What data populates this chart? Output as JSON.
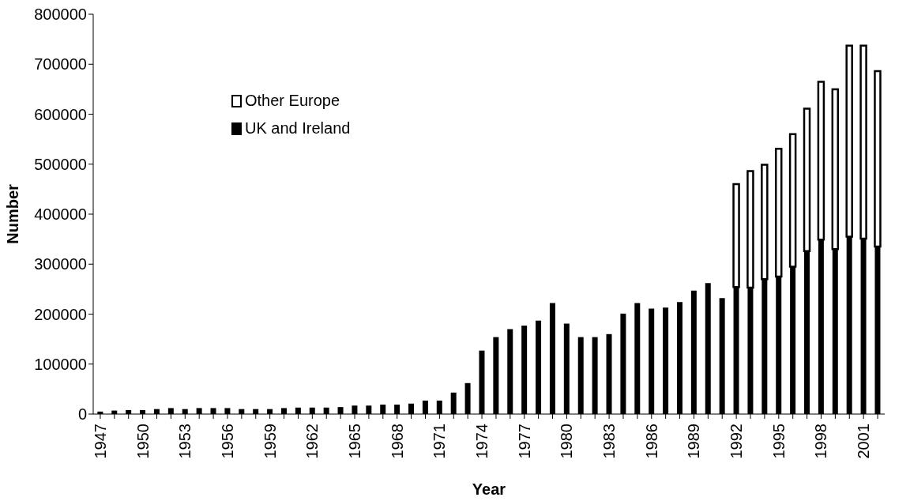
{
  "chart_data": {
    "type": "bar",
    "xlabel": "Year",
    "ylabel": "Number",
    "stacked": true,
    "legend": "top left",
    "grid": false,
    "categories": [
      "1947",
      null,
      null,
      "1950",
      null,
      null,
      "1953",
      null,
      null,
      "1956",
      null,
      null,
      "1959",
      null,
      null,
      "1962",
      null,
      null,
      "1965",
      null,
      null,
      "1968",
      null,
      null,
      "1971",
      null,
      null,
      "1974",
      null,
      null,
      "1977",
      null,
      null,
      "1980",
      null,
      null,
      "1983",
      null,
      null,
      "1986",
      null,
      null,
      "1989",
      null,
      null,
      "1992",
      null,
      null,
      "1995",
      null,
      null,
      "1998",
      null,
      null,
      "2001",
      null
    ],
    "ylim": [
      0,
      800000
    ],
    "yticks": [
      0,
      100000,
      200000,
      300000,
      400000,
      500000,
      600000,
      700000,
      800000
    ],
    "series": [
      {
        "name": "UK and Ireland",
        "color": "#000000",
        "values": [
          5000,
          7000,
          8000,
          8000,
          10000,
          12000,
          10000,
          12000,
          12000,
          12000,
          10000,
          10000,
          10000,
          12000,
          13000,
          13000,
          13000,
          14000,
          17000,
          17000,
          19000,
          19000,
          21000,
          27000,
          27000,
          43000,
          62000,
          127000,
          154000,
          170000,
          177000,
          187000,
          222000,
          181000,
          154000,
          154000,
          160000,
          201000,
          222000,
          211000,
          213000,
          224000,
          247000,
          262000,
          232000,
          254000,
          253000,
          270000,
          275000,
          295000,
          326000,
          349000,
          330000,
          355000,
          351000,
          335000
        ]
      },
      {
        "name": "Other Europe",
        "color": "#ffffff",
        "values": [
          null,
          null,
          null,
          null,
          null,
          null,
          null,
          null,
          null,
          null,
          null,
          null,
          null,
          null,
          null,
          null,
          null,
          null,
          null,
          null,
          null,
          null,
          null,
          null,
          null,
          null,
          null,
          null,
          null,
          null,
          null,
          null,
          null,
          null,
          null,
          null,
          null,
          null,
          null,
          null,
          null,
          null,
          null,
          null,
          null,
          206000,
          233000,
          229000,
          256000,
          265000,
          285000,
          316000,
          320000,
          382000,
          386000,
          351000
        ]
      }
    ]
  }
}
